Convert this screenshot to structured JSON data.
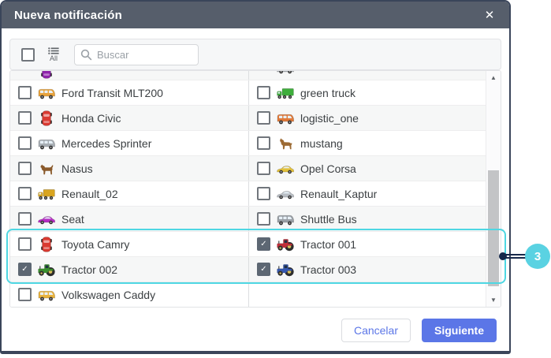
{
  "colors": {
    "header_bg": "#565e6b",
    "modal_border": "#3a455a",
    "accent": "#5b76e7",
    "cyan": "#4ed7e3",
    "navy": "#16284a",
    "circle": "#5ad2e2",
    "row_alt": "#f6f7f7",
    "checked": "#5d6773"
  },
  "modal": {
    "title": "Nueva notificación",
    "close_icon": "✕"
  },
  "toolbar": {
    "all_label": "All",
    "search_placeholder": "Buscar"
  },
  "list": {
    "partial_row": {
      "left": {
        "icon": "car-top",
        "color": "#8e24aa"
      },
      "right": {
        "icon": "car-side",
        "color": "#aab0b6"
      }
    },
    "rows": [
      {
        "left": {
          "label": "Ford Transit MLT200",
          "icon": "van",
          "color": "#e8a33d",
          "checked": false
        },
        "right": {
          "label": "green truck",
          "icon": "truck",
          "color": "#3fae3c",
          "checked": false
        }
      },
      {
        "left": {
          "label": "Honda Civic",
          "icon": "car-top",
          "color": "#d93a31",
          "checked": false
        },
        "right": {
          "label": "logistic_one",
          "icon": "van",
          "color": "#e07a3a",
          "checked": false
        }
      },
      {
        "left": {
          "label": "Mercedes Sprinter",
          "icon": "van",
          "color": "#a9afb5",
          "checked": false
        },
        "right": {
          "label": "mustang",
          "icon": "horse",
          "color": "#9c6a33",
          "checked": false
        }
      },
      {
        "left": {
          "label": "Nasus",
          "icon": "dog",
          "color": "#8a5a2b",
          "checked": false
        },
        "right": {
          "label": "Opel Corsa",
          "icon": "car-side",
          "color": "#e3c13a",
          "checked": false
        }
      },
      {
        "left": {
          "label": "Renault_02",
          "icon": "truck",
          "color": "#d9a520",
          "checked": false
        },
        "right": {
          "label": "Renault_Kaptur",
          "icon": "car-side",
          "color": "#b9bec4",
          "checked": false
        }
      },
      {
        "left": {
          "label": "Seat",
          "icon": "car-side",
          "color": "#b62fc4",
          "checked": false
        },
        "right": {
          "label": "Shuttle Bus",
          "icon": "van",
          "color": "#9aa0a6",
          "checked": false
        }
      },
      {
        "left": {
          "label": "Toyota Camry",
          "icon": "car-top",
          "color": "#d93a31",
          "checked": false
        },
        "right": {
          "label": "Tractor 001",
          "icon": "tractor",
          "color": "#c22f3a",
          "checked": true
        }
      },
      {
        "left": {
          "label": "Tractor 002",
          "icon": "tractor",
          "color": "#3a8f2e",
          "checked": true
        },
        "right": {
          "label": "Tractor 003",
          "icon": "tractor",
          "color": "#3558b0",
          "checked": true
        }
      },
      {
        "left": {
          "label": "Volkswagen Caddy",
          "icon": "van",
          "color": "#e8b23d",
          "checked": false
        },
        "right": null
      }
    ]
  },
  "footer": {
    "cancel_label": "Cancelar",
    "next_label": "Siguiente"
  },
  "callout": {
    "number": "3"
  }
}
